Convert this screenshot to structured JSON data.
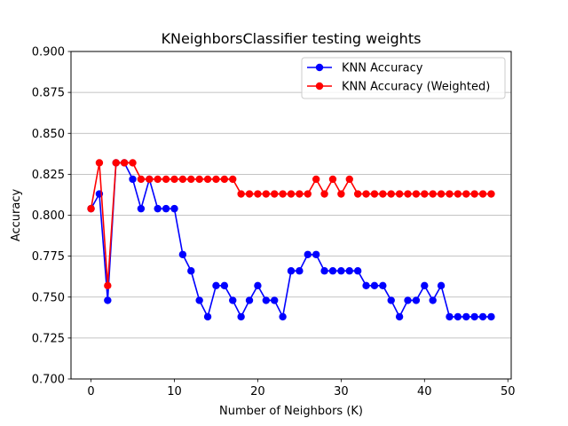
{
  "chart_data": {
    "type": "line",
    "title": "KNeighborsClassifier testing weights",
    "xlabel": "Number of Neighbors (K)",
    "ylabel": "Accuracy",
    "xlim": [
      -2.4,
      50.4
    ],
    "ylim": [
      0.7,
      0.9
    ],
    "xticks": [
      0,
      10,
      20,
      30,
      40,
      50
    ],
    "yticks": [
      0.7,
      0.725,
      0.75,
      0.775,
      0.8,
      0.825,
      0.85,
      0.875,
      0.9
    ],
    "ytick_labels": [
      "0.700",
      "0.725",
      "0.750",
      "0.775",
      "0.800",
      "0.825",
      "0.850",
      "0.875",
      "0.900"
    ],
    "grid": "y-major",
    "legend": "top-right",
    "x": [
      0,
      1,
      2,
      3,
      4,
      5,
      6,
      7,
      8,
      9,
      10,
      11,
      12,
      13,
      14,
      15,
      16,
      17,
      18,
      19,
      20,
      21,
      22,
      23,
      24,
      25,
      26,
      27,
      28,
      29,
      30,
      31,
      32,
      33,
      34,
      35,
      36,
      37,
      38,
      39,
      40,
      41,
      42,
      43,
      44,
      45,
      46,
      47,
      48
    ],
    "series": [
      {
        "name": "KNN Accuracy",
        "color": "#0000ff",
        "values": [
          0.804,
          0.813,
          0.748,
          0.832,
          0.832,
          0.822,
          0.804,
          0.822,
          0.804,
          0.804,
          0.804,
          0.776,
          0.766,
          0.748,
          0.738,
          0.757,
          0.757,
          0.748,
          0.738,
          0.748,
          0.757,
          0.748,
          0.748,
          0.738,
          0.766,
          0.766,
          0.776,
          0.776,
          0.766,
          0.766,
          0.766,
          0.766,
          0.766,
          0.757,
          0.757,
          0.757,
          0.748,
          0.738,
          0.748,
          0.748,
          0.757,
          0.748,
          0.757,
          0.738,
          0.738,
          0.738,
          0.738,
          0.738,
          0.738
        ]
      },
      {
        "name": "KNN Accuracy (Weighted)",
        "color": "#ff0000",
        "values": [
          0.804,
          0.832,
          0.757,
          0.832,
          0.832,
          0.832,
          0.822,
          0.822,
          0.822,
          0.822,
          0.822,
          0.822,
          0.822,
          0.822,
          0.822,
          0.822,
          0.822,
          0.822,
          0.813,
          0.813,
          0.813,
          0.813,
          0.813,
          0.813,
          0.813,
          0.813,
          0.813,
          0.822,
          0.813,
          0.822,
          0.813,
          0.822,
          0.813,
          0.813,
          0.813,
          0.813,
          0.813,
          0.813,
          0.813,
          0.813,
          0.813,
          0.813,
          0.813,
          0.813,
          0.813,
          0.813,
          0.813,
          0.813,
          0.813
        ]
      }
    ]
  }
}
